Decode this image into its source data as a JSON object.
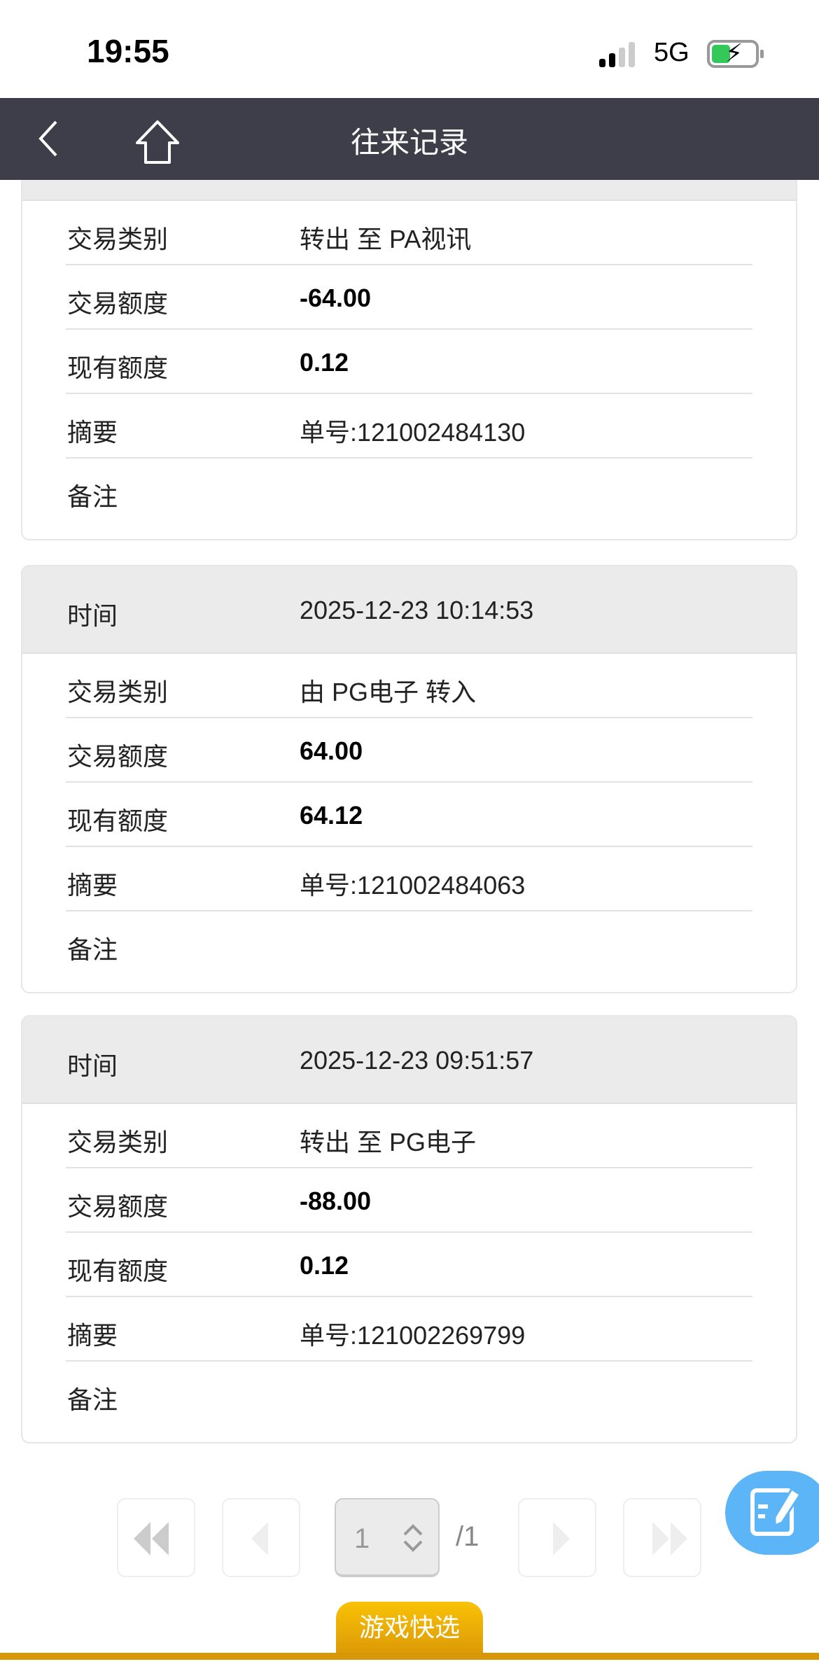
{
  "status_bar": {
    "time": "19:55",
    "network": "5G",
    "signal_bars": 2,
    "battery_percent": 40,
    "charging": true
  },
  "nav": {
    "title": "往来记录",
    "back_icon": "chevron-left-icon",
    "home_icon": "home-icon"
  },
  "records": [
    {
      "time_label": "时间",
      "time": "",
      "rows": [
        {
          "label": "交易类别",
          "value": "转出 至 PA视讯"
        },
        {
          "label": "交易额度",
          "value": "-64.00"
        },
        {
          "label": "现有额度",
          "value": "0.12"
        },
        {
          "label": "摘要",
          "value": "单号:121002484130"
        },
        {
          "label": "备注",
          "value": ""
        }
      ]
    },
    {
      "time_label": "时间",
      "time": "2025-12-23 10:14:53",
      "rows": [
        {
          "label": "交易类别",
          "value": "由 PG电子 转入"
        },
        {
          "label": "交易额度",
          "value": "64.00"
        },
        {
          "label": "现有额度",
          "value": "64.12"
        },
        {
          "label": "摘要",
          "value": "单号:121002484063"
        },
        {
          "label": "备注",
          "value": ""
        }
      ]
    },
    {
      "time_label": "时间",
      "time": "2025-12-23 09:51:57",
      "rows": [
        {
          "label": "交易类别",
          "value": "转出 至 PG电子"
        },
        {
          "label": "交易额度",
          "value": "-88.00"
        },
        {
          "label": "现有额度",
          "value": "0.12"
        },
        {
          "label": "摘要",
          "value": "单号:121002269799"
        },
        {
          "label": "备注",
          "value": ""
        }
      ]
    }
  ],
  "pagination": {
    "current": "1",
    "total": "/1"
  },
  "bottom_tab": {
    "label": "游戏快选"
  },
  "colors": {
    "nav": "#3e3d4a",
    "header_row": "#ebebeb",
    "fab": "#5bb5f7",
    "tab": "#f0b106"
  }
}
